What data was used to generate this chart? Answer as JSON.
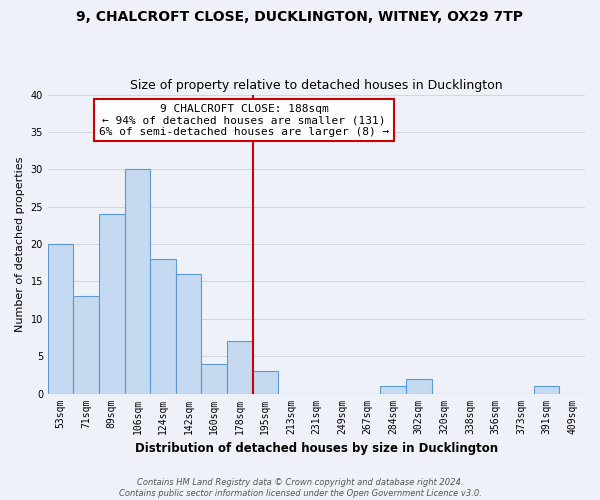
{
  "title": "9, CHALCROFT CLOSE, DUCKLINGTON, WITNEY, OX29 7TP",
  "subtitle": "Size of property relative to detached houses in Ducklington",
  "xlabel": "Distribution of detached houses by size in Ducklington",
  "ylabel": "Number of detached properties",
  "bar_labels": [
    "53sqm",
    "71sqm",
    "89sqm",
    "106sqm",
    "124sqm",
    "142sqm",
    "160sqm",
    "178sqm",
    "195sqm",
    "213sqm",
    "231sqm",
    "249sqm",
    "267sqm",
    "284sqm",
    "302sqm",
    "320sqm",
    "338sqm",
    "356sqm",
    "373sqm",
    "391sqm",
    "409sqm"
  ],
  "bar_values": [
    20,
    13,
    24,
    30,
    18,
    16,
    4,
    7,
    3,
    0,
    0,
    0,
    0,
    1,
    2,
    0,
    0,
    0,
    0,
    1,
    0
  ],
  "bar_color": "#c5d9f1",
  "bar_edge_color": "#5b9bd5",
  "highlight_line_index": 8,
  "highlight_color": "#cc0000",
  "annotation_title": "9 CHALCROFT CLOSE: 188sqm",
  "annotation_line1": "← 94% of detached houses are smaller (131)",
  "annotation_line2": "6% of semi-detached houses are larger (8) →",
  "annotation_box_color": "#ffffff",
  "annotation_box_edge": "#cc0000",
  "ylim": [
    0,
    40
  ],
  "yticks": [
    0,
    5,
    10,
    15,
    20,
    25,
    30,
    35,
    40
  ],
  "grid_color": "#d0d8e8",
  "background_color": "#eef2f8",
  "footer_line1": "Contains HM Land Registry data © Crown copyright and database right 2024.",
  "footer_line2": "Contains public sector information licensed under the Open Government Licence v3.0.",
  "title_fontsize": 10,
  "subtitle_fontsize": 9,
  "xlabel_fontsize": 8.5,
  "ylabel_fontsize": 8,
  "annotation_fontsize": 8,
  "tick_fontsize": 7,
  "footer_fontsize": 6
}
